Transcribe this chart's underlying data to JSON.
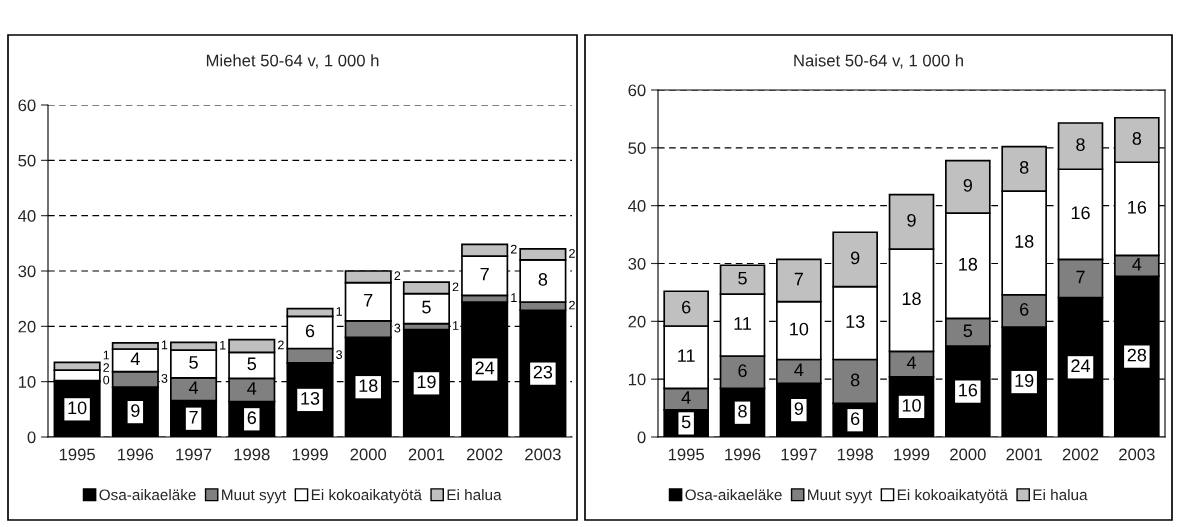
{
  "chart_data": [
    {
      "type": "bar",
      "stacked": true,
      "title": "Miehet 50-64 v, 1 000 h",
      "categories": [
        "1995",
        "1996",
        "1997",
        "1998",
        "1999",
        "2000",
        "2001",
        "2002",
        "2003"
      ],
      "ylim": [
        0,
        60
      ],
      "yticks": [
        0,
        10,
        20,
        30,
        40,
        50,
        60
      ],
      "grid": "y",
      "legend": "bottom",
      "series": [
        {
          "name": "Osa-aikaeläke",
          "color": "#000000",
          "values": [
            10.0,
            9.0,
            6.6,
            6.4,
            13.4,
            18.0,
            19.4,
            24.4,
            22.9
          ],
          "value_labels": [
            "10",
            "9",
            "7",
            "6",
            "13",
            "18",
            "19",
            "24",
            "23"
          ]
        },
        {
          "name": "Muut syyt",
          "color": "#808080",
          "values": [
            0.2,
            2.8,
            4.1,
            4.2,
            2.6,
            3.0,
            1.1,
            1.2,
            1.5
          ],
          "value_labels": [
            "0",
            "3",
            "4",
            "4",
            "3",
            "3",
            "1",
            "1",
            "2"
          ]
        },
        {
          "name": "Ei kokoaikatyötä",
          "color": "#ffffff",
          "values": [
            1.9,
            4.1,
            5.0,
            4.7,
            5.8,
            6.9,
            5.4,
            7.1,
            7.6
          ],
          "value_labels": [
            "2",
            "4",
            "5",
            "5",
            "6",
            "7",
            "5",
            "7",
            "8"
          ]
        },
        {
          "name": "Ei halua",
          "color": "#c0c0c0",
          "values": [
            1.4,
            1.1,
            1.4,
            2.3,
            1.4,
            2.1,
            2.1,
            2.1,
            2.0
          ],
          "value_labels": [
            "1",
            "1",
            "1",
            "2",
            "1",
            "2",
            "2",
            "2",
            "2"
          ]
        }
      ]
    },
    {
      "type": "bar",
      "stacked": true,
      "title": "Naiset 50-64 v, 1 000 h",
      "categories": [
        "1995",
        "1996",
        "1997",
        "1998",
        "1999",
        "2000",
        "2001",
        "2002",
        "2003"
      ],
      "ylim": [
        0,
        60
      ],
      "yticks": [
        0,
        10,
        20,
        30,
        40,
        50,
        60
      ],
      "grid": "y",
      "legend": "bottom",
      "series": [
        {
          "name": "Osa-aikaeläke",
          "color": "#000000",
          "values": [
            4.7,
            8.4,
            9.3,
            5.8,
            10.4,
            15.7,
            19.0,
            24.1,
            27.8
          ],
          "value_labels": [
            "5",
            "8",
            "9",
            "6",
            "10",
            "16",
            "19",
            "24",
            "28"
          ]
        },
        {
          "name": "Muut syyt",
          "color": "#808080",
          "values": [
            3.7,
            5.6,
            4.1,
            7.6,
            4.4,
            4.8,
            5.6,
            6.6,
            3.6
          ],
          "value_labels": [
            "4",
            "6",
            "4",
            "8",
            "4",
            "5",
            "6",
            "7",
            "4"
          ]
        },
        {
          "name": "Ei kokoaikatyötä",
          "color": "#ffffff",
          "values": [
            10.8,
            10.7,
            10.0,
            12.6,
            17.7,
            18.2,
            17.9,
            15.6,
            16.1
          ],
          "value_labels": [
            "11",
            "11",
            "10",
            "13",
            "18",
            "18",
            "18",
            "16",
            "16"
          ]
        },
        {
          "name": "Ei halua",
          "color": "#c0c0c0",
          "values": [
            6.0,
            5.0,
            7.3,
            9.4,
            9.4,
            9.1,
            7.7,
            8.0,
            7.7
          ],
          "value_labels": [
            "6",
            "5",
            "7",
            "9",
            "9",
            "9",
            "8",
            "8",
            "8"
          ]
        }
      ]
    }
  ]
}
